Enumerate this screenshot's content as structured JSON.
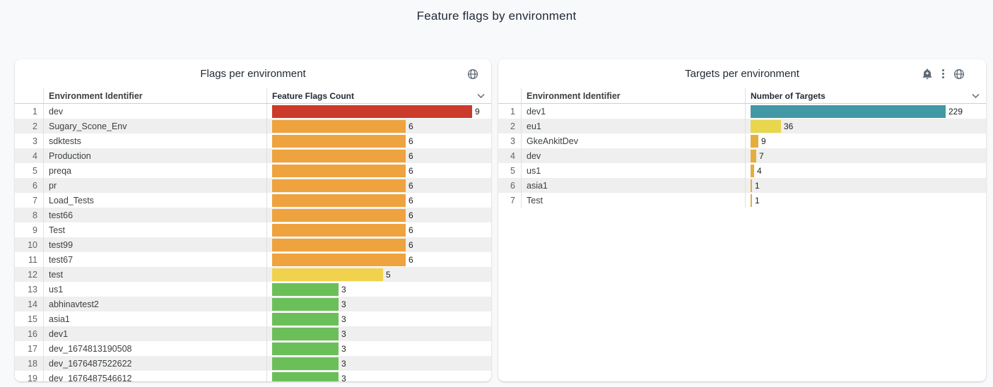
{
  "page": {
    "title": "Feature flags by environment"
  },
  "colors": {
    "background": "#f8f9fa",
    "card": "#ffffff",
    "row_stripe": "#efefef",
    "red": "#cb3a2b",
    "orange": "#eea33e",
    "yellow": "#f0d24d",
    "green": "#6bbf59",
    "teal": "#4298a5",
    "light_yellow": "#e8d64c",
    "amber": "#e3ae3b",
    "icon_gray": "#5f6974"
  },
  "chart_data": [
    {
      "type": "bar",
      "orientation": "horizontal",
      "title": "Flags per environment",
      "columns": [
        "Environment Identifier",
        "Feature Flags Count"
      ],
      "header_icons": [
        "globe"
      ],
      "max_value": 9,
      "last_row_clipped": true,
      "rows": [
        {
          "rank": 1,
          "category": "dev",
          "value": 9,
          "color": "#cb3a2b"
        },
        {
          "rank": 2,
          "category": "Sugary_Scone_Env",
          "value": 6,
          "color": "#eea33e"
        },
        {
          "rank": 3,
          "category": "sdktests",
          "value": 6,
          "color": "#eea33e"
        },
        {
          "rank": 4,
          "category": "Production",
          "value": 6,
          "color": "#eea33e"
        },
        {
          "rank": 5,
          "category": "preqa",
          "value": 6,
          "color": "#eea33e"
        },
        {
          "rank": 6,
          "category": "pr",
          "value": 6,
          "color": "#eea33e"
        },
        {
          "rank": 7,
          "category": "Load_Tests",
          "value": 6,
          "color": "#eea33e"
        },
        {
          "rank": 8,
          "category": "test66",
          "value": 6,
          "color": "#eea33e"
        },
        {
          "rank": 9,
          "category": "Test",
          "value": 6,
          "color": "#eea33e"
        },
        {
          "rank": 10,
          "category": "test99",
          "value": 6,
          "color": "#eea33e"
        },
        {
          "rank": 11,
          "category": "test67",
          "value": 6,
          "color": "#eea33e"
        },
        {
          "rank": 12,
          "category": "test",
          "value": 5,
          "color": "#f0d24d"
        },
        {
          "rank": 13,
          "category": "us1",
          "value": 3,
          "color": "#6bbf59"
        },
        {
          "rank": 14,
          "category": "abhinavtest2",
          "value": 3,
          "color": "#6bbf59"
        },
        {
          "rank": 15,
          "category": "asia1",
          "value": 3,
          "color": "#6bbf59"
        },
        {
          "rank": 16,
          "category": "dev1",
          "value": 3,
          "color": "#6bbf59"
        },
        {
          "rank": 17,
          "category": "dev_1674813190508",
          "value": 3,
          "color": "#6bbf59"
        },
        {
          "rank": 18,
          "category": "dev_1676487522622",
          "value": 3,
          "color": "#6bbf59"
        },
        {
          "rank": 19,
          "category": "dev_1676487546612",
          "value": 3,
          "color": "#6bbf59"
        }
      ]
    },
    {
      "type": "bar",
      "orientation": "horizontal",
      "title": "Targets per environment",
      "columns": [
        "Environment Identifier",
        "Number of Targets"
      ],
      "header_icons": [
        "bell-add",
        "kebab-menu",
        "globe"
      ],
      "max_value": 229,
      "rows": [
        {
          "rank": 1,
          "category": "dev1",
          "value": 229,
          "color": "#4298a5"
        },
        {
          "rank": 2,
          "category": "eu1",
          "value": 36,
          "color": "#e8d64c"
        },
        {
          "rank": 3,
          "category": "GkeAnkitDev",
          "value": 9,
          "color": "#e3ae3b"
        },
        {
          "rank": 4,
          "category": "dev",
          "value": 7,
          "color": "#e3ae3b"
        },
        {
          "rank": 5,
          "category": "us1",
          "value": 4,
          "color": "#e3ae3b"
        },
        {
          "rank": 6,
          "category": "asia1",
          "value": 1,
          "color": "#e3ae3b"
        },
        {
          "rank": 7,
          "category": "Test",
          "value": 1,
          "color": "#e3ae3b"
        }
      ]
    }
  ]
}
